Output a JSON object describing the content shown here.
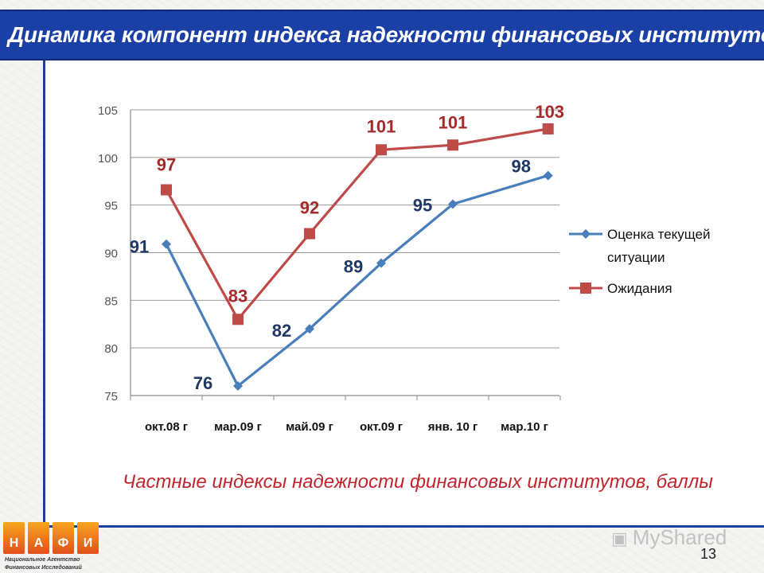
{
  "title": "Динамика компонент индекса надежности финансовых институтов",
  "caption": "Частные индексы надежности финансовых институтов, баллы",
  "page_number": "13",
  "logo": {
    "letters": [
      "Н",
      "А",
      "Ф",
      "И"
    ],
    "subtitle_line1": "Национальное Агентство",
    "subtitle_line2": "Финансовых Исследований"
  },
  "watermark": "MyShared",
  "colors": {
    "title_bar": "#1a3fa5",
    "series_current": "#4a7ebb",
    "series_expect": "#be4b48",
    "label_current": "#1f3864",
    "label_expect": "#a52a2a",
    "caption": "#c0262d"
  },
  "chart_data": {
    "type": "line",
    "categories": [
      "окт.08 г",
      "мар.09 г",
      "май.09 г",
      "окт.09 г",
      "янв. 10 г",
      "мар.10 г"
    ],
    "x": [
      0,
      1,
      2,
      3,
      4,
      5.33
    ],
    "series": [
      {
        "name": "Оценка текущей ситуации",
        "marker": "diamond",
        "values": [
          90.9,
          76,
          82,
          88.9,
          95.1,
          98.1
        ],
        "labels": [
          "91",
          "76",
          "82",
          "89",
          "95",
          "98"
        ]
      },
      {
        "name": "Ожидания",
        "marker": "square",
        "values": [
          96.6,
          83,
          92,
          100.8,
          101.3,
          103
        ],
        "labels": [
          "97",
          "83",
          "92",
          "101",
          "101",
          "103"
        ]
      }
    ],
    "ylim": [
      75,
      105
    ],
    "yticks": [
      75,
      80,
      85,
      90,
      95,
      100,
      105
    ],
    "legend": "right",
    "grid": true
  }
}
